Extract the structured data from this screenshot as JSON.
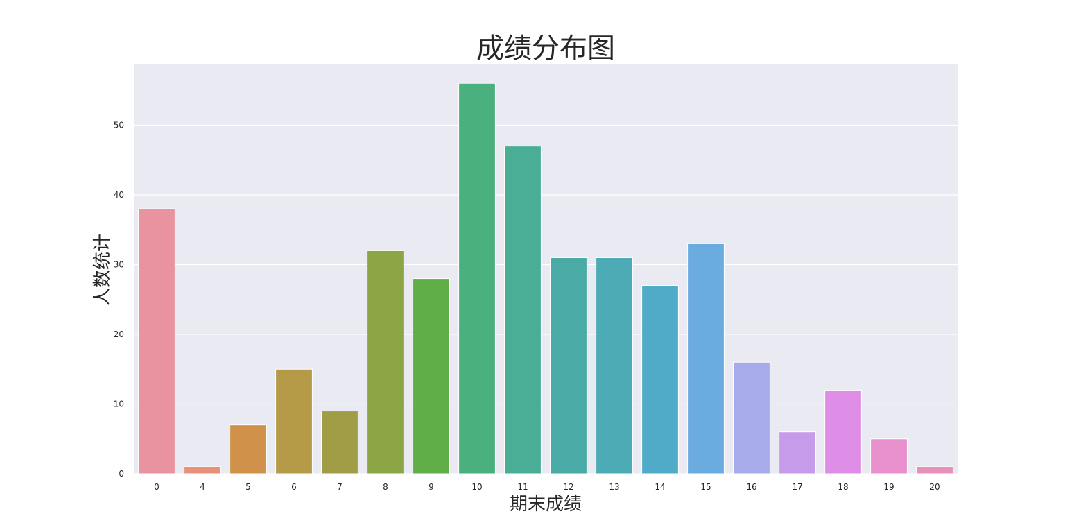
{
  "chart_data": {
    "type": "bar",
    "title": "成绩分布图",
    "xlabel": "期末成绩",
    "ylabel": "人数统计",
    "categories": [
      "0",
      "4",
      "5",
      "6",
      "7",
      "8",
      "9",
      "10",
      "11",
      "12",
      "13",
      "14",
      "15",
      "16",
      "17",
      "18",
      "19",
      "20"
    ],
    "values": [
      38,
      1,
      7,
      15,
      9,
      32,
      28,
      56,
      47,
      31,
      31,
      27,
      33,
      16,
      6,
      12,
      5,
      1
    ],
    "ylim": [
      0,
      59
    ],
    "yticks": [
      0,
      10,
      20,
      30,
      40,
      50
    ],
    "grid": true,
    "legend": "none",
    "colors": {
      "background": "#EAEAF2",
      "grid": "#FFFFFF",
      "text": "#262626",
      "bars": [
        "#E8939F",
        "#E9907A",
        "#D0924B",
        "#B59A47",
        "#A19D47",
        "#8CA646",
        "#60AE47",
        "#4AB07D",
        "#4AAD95",
        "#4AAAA5",
        "#4CABB5",
        "#50ABC8",
        "#6AABE0",
        "#A7ABEA",
        "#C69BEA",
        "#DE8EE6",
        "#E88FCE",
        "#E88FBB"
      ]
    }
  }
}
